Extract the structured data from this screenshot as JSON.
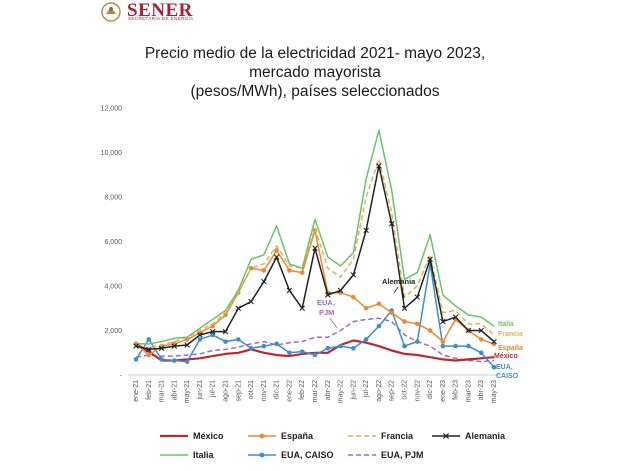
{
  "header": {
    "logo_text": "SENER",
    "logo_subtext": "SECRETARÍA DE ENERGÍA"
  },
  "chart_data": {
    "type": "line",
    "title_lines": [
      "Precio medio de la electricidad 2021- mayo 2023,",
      "mercado mayorista",
      "(pesos/MWh), países seleccionados"
    ],
    "xlabel": "",
    "ylabel": "",
    "ylim": [
      0,
      12000
    ],
    "yticks": [
      "-",
      "2,000",
      "4,000",
      "6,000",
      "8,000",
      "10,000",
      "12,000"
    ],
    "grid": false,
    "legend_position": "bottom",
    "categories": [
      "ene-21",
      "feb-21",
      "mar-21",
      "abr-21",
      "may-21",
      "jun-21",
      "jul-21",
      "ago-21",
      "sep-21",
      "oct-21",
      "nov-21",
      "dic-21",
      "ene-22",
      "feb-22",
      "mar-22",
      "abr-22",
      "may-22",
      "jun-22",
      "jul-22",
      "ago-22",
      "sep-22",
      "oct-22",
      "nov-22",
      "dic-22",
      "ene-23",
      "feb-23",
      "mar-23",
      "abr-23",
      "may-23"
    ],
    "series": [
      {
        "name": "México",
        "color": "#c0262d",
        "style": "solid",
        "end_label": "México",
        "values": [
          1400,
          1050,
          650,
          650,
          700,
          750,
          850,
          950,
          1000,
          1150,
          1000,
          900,
          850,
          950,
          1000,
          1000,
          1350,
          1550,
          1450,
          1300,
          1100,
          950,
          900,
          800,
          700,
          650,
          700,
          750,
          800
        ]
      },
      {
        "name": "España",
        "color": "#e8893a",
        "style": "solid",
        "marker": "circle",
        "end_label": "España",
        "values": [
          1400,
          900,
          1300,
          1400,
          1600,
          1900,
          2200,
          2700,
          3700,
          4800,
          4700,
          5600,
          4700,
          4600,
          6500,
          3700,
          3700,
          3500,
          3000,
          3200,
          2800,
          2400,
          2300,
          2000,
          1500,
          2500,
          2000,
          1600,
          1400
        ]
      },
      {
        "name": "Francia",
        "color": "#dcb25a",
        "style": "dashed",
        "end_label": "Francia",
        "values": [
          1300,
          1200,
          1350,
          1500,
          1700,
          2000,
          2300,
          2800,
          3700,
          4800,
          5000,
          5800,
          4900,
          4800,
          6600,
          4800,
          4400,
          5200,
          8000,
          9700,
          7300,
          3500,
          4000,
          5400,
          2800,
          2900,
          2300,
          2300,
          1800
        ]
      },
      {
        "name": "Alemania",
        "color": "#222222",
        "style": "solid",
        "marker": "x",
        "values": [
          1300,
          1150,
          1200,
          1300,
          1350,
          1800,
          1950,
          1950,
          3000,
          3300,
          4200,
          5300,
          3800,
          3000,
          5700,
          3600,
          3800,
          4500,
          6500,
          9400,
          6800,
          3000,
          3500,
          5200,
          2400,
          2600,
          2000,
          2000,
          1500
        ]
      },
      {
        "name": "Italia",
        "color": "#6cc36b",
        "style": "solid",
        "end_label": "Italia",
        "values": [
          1400,
          1400,
          1500,
          1650,
          1700,
          2100,
          2500,
          2900,
          3800,
          5200,
          5400,
          6700,
          5000,
          4800,
          7000,
          5300,
          4900,
          5500,
          8800,
          11000,
          8300,
          4300,
          4600,
          6300,
          3600,
          3100,
          2700,
          2600,
          2200
        ]
      },
      {
        "name": "EUA, CAISO",
        "color": "#3d8ec9",
        "style": "solid",
        "marker": "circle",
        "end_label": "EUA, CAISO",
        "values": [
          700,
          1600,
          700,
          650,
          600,
          1600,
          1800,
          1500,
          1600,
          1200,
          1300,
          1400,
          1000,
          1050,
          900,
          1200,
          1300,
          1200,
          1600,
          2200,
          2900,
          1300,
          1500,
          5000,
          1300,
          1300,
          1300,
          1000,
          350
        ]
      },
      {
        "name": "EUA, PJM",
        "color": "#9b6ad0",
        "style": "dashed",
        "end_label": "",
        "values": [
          800,
          900,
          850,
          850,
          900,
          950,
          1100,
          1150,
          1250,
          1400,
          1500,
          1350,
          1450,
          1500,
          1700,
          1700,
          2000,
          2400,
          2500,
          2550,
          2400,
          1800,
          1500,
          1300,
          900,
          750,
          650,
          600,
          650
        ]
      }
    ],
    "annotations": [
      {
        "text": "Alemania",
        "color": "#222222"
      },
      {
        "text": "EUA,",
        "color": "#9b6ad0"
      },
      {
        "text": "PJM",
        "color": "#9b6ad0"
      }
    ]
  }
}
